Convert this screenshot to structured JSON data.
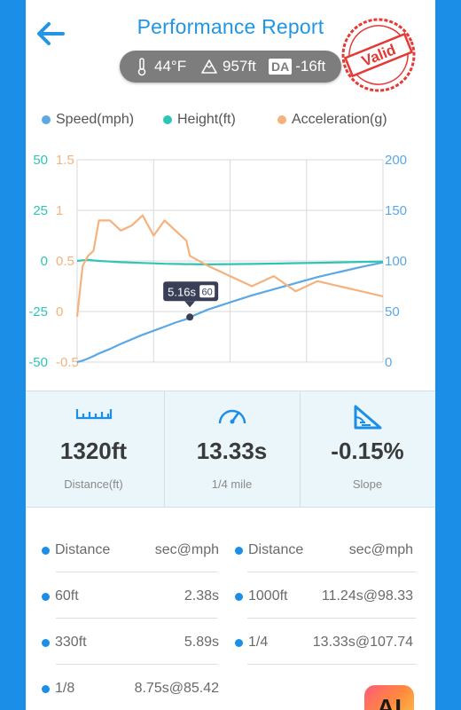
{
  "header": {
    "title": "Performance Report",
    "back_icon": "arrow-left-icon",
    "stamp_text": "Valid"
  },
  "weather": {
    "temperature": "44°F",
    "altitude": "957ft",
    "da_badge": "DA",
    "density_altitude": "-16ft"
  },
  "colors": {
    "accent": "#2196e3",
    "speed": "#5aa8e6",
    "height": "#2ec4b6",
    "acceleration": "#f6b27c",
    "stamp": "#e53935"
  },
  "legend": [
    {
      "label": "Speed(mph)",
      "color": "#5aa8e6"
    },
    {
      "label": "Height(ft)",
      "color": "#2ec4b6"
    },
    {
      "label": "Acceleration(g)",
      "color": "#f6b27c"
    }
  ],
  "chart_data": {
    "type": "line",
    "x": [
      0,
      0.25,
      0.5,
      0.75,
      1,
      1.5,
      2,
      2.5,
      3,
      3.5,
      4,
      4.5,
      5,
      5.16,
      6,
      7,
      8,
      9,
      10,
      11,
      12,
      13,
      14
    ],
    "series": [
      {
        "name": "Speed(mph)",
        "axis": "right",
        "values": [
          0,
          1.5,
          3.5,
          6,
          8.5,
          13,
          18,
          22.5,
          27,
          31,
          35,
          39,
          42.5,
          44.5,
          52,
          59,
          66,
          72,
          78,
          84,
          89,
          94,
          98.5
        ]
      },
      {
        "name": "Height(ft)",
        "axis": "left-outer",
        "values": [
          0,
          0.3,
          0.5,
          0.2,
          0,
          -0.3,
          -0.6,
          -0.8,
          -1.0,
          -1.2,
          -1.4,
          -1.5,
          -1.6,
          -1.6,
          -1.7,
          -1.6,
          -1.5,
          -1.3,
          -1.1,
          -0.9,
          -0.7,
          -0.5,
          -0.3
        ]
      },
      {
        "name": "Acceleration(g)",
        "axis": "left-inner",
        "values": [
          -0.05,
          0.45,
          0.55,
          0.6,
          0.9,
          0.9,
          0.8,
          0.85,
          0.95,
          0.75,
          0.9,
          0.8,
          0.7,
          0.55,
          0.45,
          0.35,
          0.25,
          0.35,
          0.2,
          0.3,
          0.25,
          0.2,
          0.15
        ]
      }
    ],
    "y_axes": {
      "left_outer": {
        "ticks": [
          "50",
          "25",
          "0",
          "-25",
          "-50"
        ],
        "range": [
          -50,
          50
        ],
        "color": "#2ec4b6"
      },
      "left_inner": {
        "ticks": [
          "1.5",
          "1",
          "0.5",
          "0",
          "-0.5"
        ],
        "range": [
          -0.5,
          1.5
        ],
        "color": "#f6b27c"
      },
      "right": {
        "ticks": [
          "200",
          "150",
          "100",
          "50",
          "0"
        ],
        "range": [
          0,
          200
        ],
        "color": "#5aa8e6"
      }
    },
    "xlim": [
      0,
      14
    ],
    "grid": true,
    "legend_position": "top",
    "marker": {
      "x": 5.16,
      "y": 44.5,
      "label": "5.16s",
      "badge": "60"
    }
  },
  "stats": [
    {
      "value": "1320ft",
      "label": "Distance(ft)",
      "icon": "ruler-icon"
    },
    {
      "value": "13.33s",
      "label": "1/4 mile",
      "icon": "speedometer-icon"
    },
    {
      "value": "-0.15%",
      "label": "Slope",
      "icon": "slope-icon"
    }
  ],
  "table": {
    "header": {
      "left_key": "Distance",
      "left_value": "sec@mph",
      "right_key": "Distance",
      "right_value": "sec@mph"
    },
    "rows": [
      {
        "left_key": "60ft",
        "left_value": "2.38s",
        "right_key": "1000ft",
        "right_value": "11.24s@98.33"
      },
      {
        "left_key": "330ft",
        "left_value": "5.89s",
        "right_key": "1/4",
        "right_value": "13.33s@107.74"
      },
      {
        "left_key": "1/8",
        "left_value": "8.75s@85.42",
        "right_key": "",
        "right_value": ""
      }
    ]
  },
  "ai_button": {
    "label": "AI"
  }
}
